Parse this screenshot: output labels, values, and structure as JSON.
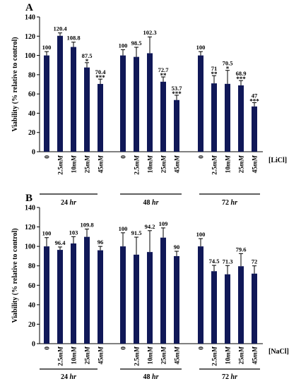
{
  "chart_data": [
    {
      "panel": "A",
      "type": "bar",
      "ylabel": "Viability (% relative to control)",
      "ylim": [
        0,
        140
      ],
      "yticks": [
        0,
        20,
        40,
        60,
        80,
        100,
        120,
        140
      ],
      "reagent_label": "[LiCl]",
      "groups": [
        {
          "label": "24 hr",
          "categories": [
            "0",
            "2.5mM",
            "10mM",
            "25mM",
            "45mM"
          ],
          "values": [
            100,
            120.4,
            108.8,
            87.5,
            70.4
          ],
          "errors": [
            4,
            3,
            5,
            5,
            5
          ],
          "labels": [
            "100",
            "120.4",
            "108.8",
            "87.5",
            "70.4"
          ],
          "significance": [
            "",
            "",
            "",
            "*",
            "***"
          ]
        },
        {
          "label": "48 hr",
          "categories": [
            "0",
            "2.5mM",
            "10mM",
            "25mM",
            "45mM"
          ],
          "values": [
            100,
            98.5,
            102.3,
            72.7,
            53.7
          ],
          "errors": [
            6,
            10,
            17,
            5,
            5
          ],
          "labels": [
            "100",
            "98.5",
            "102.3",
            "72.7",
            "53.7"
          ],
          "significance": [
            "",
            "",
            "",
            "**",
            "***"
          ]
        },
        {
          "label": "72 hr",
          "categories": [
            "0",
            "2.5mM",
            "10mM",
            "25mM",
            "45mM"
          ],
          "values": [
            100,
            71,
            70.5,
            68.9,
            47
          ],
          "errors": [
            4,
            8,
            14,
            5,
            4
          ],
          "labels": [
            "100",
            "71",
            "70.5",
            "68.9",
            "47"
          ],
          "significance": [
            "",
            "**",
            "*",
            "***",
            "***"
          ]
        }
      ]
    },
    {
      "panel": "B",
      "type": "bar",
      "ylabel": "Viability (% relative to control)",
      "ylim": [
        0,
        140
      ],
      "yticks": [
        0,
        20,
        40,
        60,
        80,
        100,
        120,
        140
      ],
      "reagent_label": "[NaCl]",
      "groups": [
        {
          "label": "24 hr",
          "categories": [
            "0",
            "2.5mM",
            "10mM",
            "25mM",
            "45mM"
          ],
          "values": [
            100,
            96.4,
            103,
            109.8,
            96
          ],
          "errors": [
            9,
            3,
            7,
            8,
            4
          ],
          "labels": [
            "100",
            "96.4",
            "103",
            "109.8",
            "96"
          ],
          "significance": [
            "",
            "",
            "",
            "",
            ""
          ]
        },
        {
          "label": "48 hr",
          "categories": [
            "0",
            "2.5mM",
            "10mM",
            "25mM",
            "45mM"
          ],
          "values": [
            100,
            91.5,
            94.2,
            109,
            90
          ],
          "errors": [
            14,
            18,
            22,
            10,
            5
          ],
          "labels": [
            "100",
            "91.5",
            "94.2",
            "109",
            "90"
          ],
          "significance": [
            "",
            "",
            "",
            "",
            ""
          ]
        },
        {
          "label": "72 hr",
          "categories": [
            "0",
            "2.5mM",
            "10mM",
            "25mM",
            "45mM"
          ],
          "values": [
            100,
            74.5,
            71.3,
            79.6,
            72
          ],
          "errors": [
            8,
            6,
            9,
            13,
            8
          ],
          "labels": [
            "100",
            "74.5",
            "71.3",
            "79.6",
            "72"
          ],
          "significance": [
            "",
            "",
            "",
            "",
            ""
          ]
        }
      ]
    }
  ],
  "colors": {
    "bar": "#101858",
    "axis": "#000000"
  }
}
